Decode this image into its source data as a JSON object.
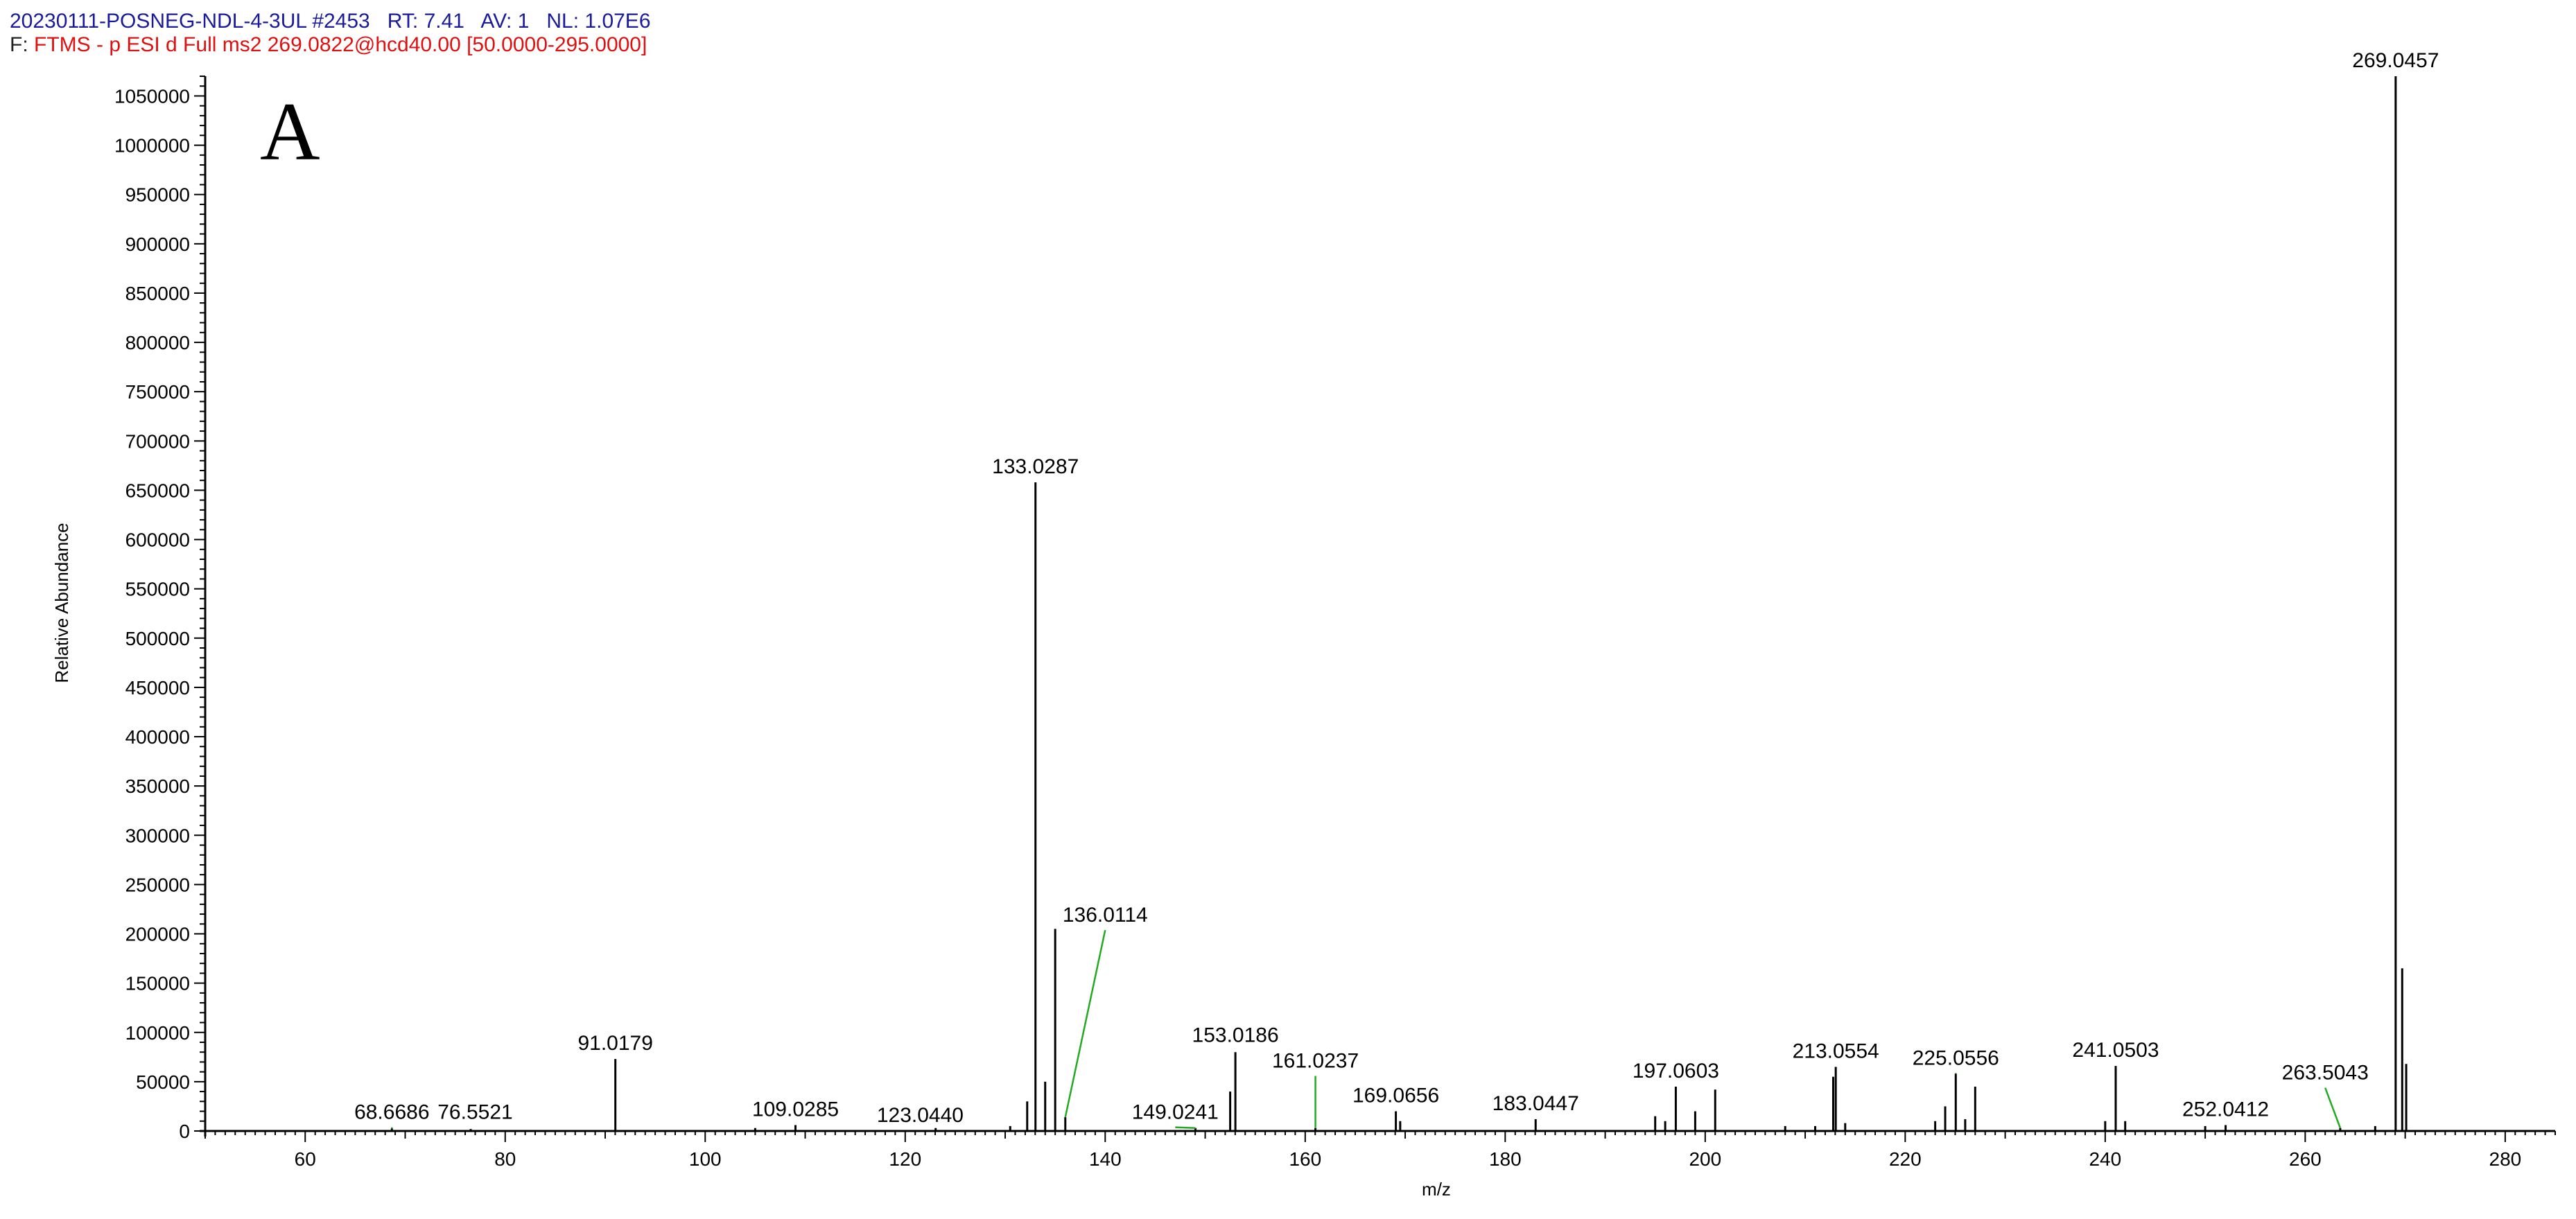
{
  "header": {
    "sample": "20230111-POSNEG-NDL-4-3UL",
    "scan_label": "#2453",
    "rt_label": "RT:",
    "rt_value": "7.41",
    "av_label": "AV:",
    "av_value": "1",
    "nl_label": "NL:",
    "nl_value": "1.07E6",
    "filter_label": "F:",
    "filter_text": "FTMS - p ESI d Full ms2 269.0822@hcd40.00 [50.0000-295.0000]"
  },
  "panel_label": "A",
  "colors": {
    "header_blue": "#1a1a9c",
    "filter_red": "#e01010",
    "peak": "#000000",
    "leader": "#22aa22"
  },
  "chart_data": {
    "type": "bar",
    "xlabel": "m/z",
    "ylabel": "Relative Abundance",
    "xlim": [
      50,
      285
    ],
    "ylim": [
      0,
      1070000
    ],
    "xticks": [
      60,
      80,
      100,
      120,
      140,
      160,
      180,
      200,
      220,
      240,
      260,
      280
    ],
    "xtick_labels": [
      "60",
      "80",
      "100",
      "120",
      "140",
      "160",
      "180",
      "200",
      "220",
      "240",
      "260",
      "280"
    ],
    "yticks": [
      0,
      50000,
      100000,
      150000,
      200000,
      250000,
      300000,
      350000,
      400000,
      450000,
      500000,
      550000,
      600000,
      650000,
      700000,
      750000,
      800000,
      850000,
      900000,
      950000,
      1000000,
      1050000
    ],
    "ytick_labels": [
      "0",
      "50000",
      "100000",
      "150000",
      "200000",
      "250000",
      "300000",
      "350000",
      "400000",
      "450000",
      "500000",
      "550000",
      "600000",
      "650000",
      "700000",
      "750000",
      "800000",
      "850000",
      "900000",
      "950000",
      "1000000",
      "1050000"
    ],
    "peaks": [
      {
        "mz": 68.6686,
        "intensity": 2500
      },
      {
        "mz": 76.5521,
        "intensity": 2000
      },
      {
        "mz": 91.0179,
        "intensity": 73000
      },
      {
        "mz": 105.0,
        "intensity": 3000
      },
      {
        "mz": 109.0285,
        "intensity": 6000
      },
      {
        "mz": 123.044,
        "intensity": 3000
      },
      {
        "mz": 130.5,
        "intensity": 5000
      },
      {
        "mz": 132.2,
        "intensity": 30000
      },
      {
        "mz": 133.0287,
        "intensity": 658000
      },
      {
        "mz": 134.0,
        "intensity": 50000
      },
      {
        "mz": 135.0,
        "intensity": 205000
      },
      {
        "mz": 136.0114,
        "intensity": 14000
      },
      {
        "mz": 149.0241,
        "intensity": 3000
      },
      {
        "mz": 152.5,
        "intensity": 40000
      },
      {
        "mz": 153.0186,
        "intensity": 80000
      },
      {
        "mz": 161.0237,
        "intensity": 3000
      },
      {
        "mz": 169.0656,
        "intensity": 20000
      },
      {
        "mz": 169.5,
        "intensity": 10000
      },
      {
        "mz": 183.0447,
        "intensity": 12000
      },
      {
        "mz": 195.0,
        "intensity": 15000
      },
      {
        "mz": 196.0,
        "intensity": 10000
      },
      {
        "mz": 197.0603,
        "intensity": 45000
      },
      {
        "mz": 199.0,
        "intensity": 20000
      },
      {
        "mz": 201.0,
        "intensity": 42000
      },
      {
        "mz": 208.0,
        "intensity": 5000
      },
      {
        "mz": 211.0,
        "intensity": 5000
      },
      {
        "mz": 212.8,
        "intensity": 55000
      },
      {
        "mz": 213.0554,
        "intensity": 65000
      },
      {
        "mz": 214.0,
        "intensity": 8000
      },
      {
        "mz": 223.0,
        "intensity": 10000
      },
      {
        "mz": 224.0,
        "intensity": 25000
      },
      {
        "mz": 225.0556,
        "intensity": 58000
      },
      {
        "mz": 226.0,
        "intensity": 12000
      },
      {
        "mz": 227.0,
        "intensity": 45000
      },
      {
        "mz": 240.0,
        "intensity": 10000
      },
      {
        "mz": 241.0503,
        "intensity": 66000
      },
      {
        "mz": 242.0,
        "intensity": 10000
      },
      {
        "mz": 250.0,
        "intensity": 5000
      },
      {
        "mz": 252.0412,
        "intensity": 6000
      },
      {
        "mz": 263.5043,
        "intensity": 3000
      },
      {
        "mz": 267.0,
        "intensity": 5000
      },
      {
        "mz": 269.0457,
        "intensity": 1070000
      },
      {
        "mz": 269.7,
        "intensity": 165000
      },
      {
        "mz": 270.1,
        "intensity": 68000
      }
    ],
    "annotations": [
      {
        "text": "68.6686",
        "mz": 68.6686,
        "label_mz": 68.6686,
        "label_y": 8000,
        "leader": true
      },
      {
        "text": "76.5521",
        "mz": 76.5521,
        "label_mz": 77.0,
        "label_y": 8000,
        "leader": false
      },
      {
        "text": "91.0179",
        "mz": 91.0179,
        "label_mz": 91.0179,
        "label_y": 78000,
        "leader": false
      },
      {
        "text": "109.0285",
        "mz": 109.0285,
        "label_mz": 109.0285,
        "label_y": 11000,
        "leader": false
      },
      {
        "text": "123.0440",
        "mz": 123.044,
        "label_mz": 121.5,
        "label_y": 5000,
        "leader": false
      },
      {
        "text": "133.0287",
        "mz": 133.0287,
        "label_mz": 133.0287,
        "label_y": 663000,
        "leader": false
      },
      {
        "text": "136.0114",
        "mz": 136.0114,
        "label_mz": 140.0,
        "label_y": 208000,
        "leader": true
      },
      {
        "text": "149.0241",
        "mz": 149.0241,
        "label_mz": 147.0,
        "label_y": 8000,
        "leader": true
      },
      {
        "text": "153.0186",
        "mz": 153.0186,
        "label_mz": 153.0186,
        "label_y": 86000,
        "leader": false
      },
      {
        "text": "161.0237",
        "mz": 161.0237,
        "label_mz": 161.0237,
        "label_y": 60000,
        "leader": true
      },
      {
        "text": "169.0656",
        "mz": 169.0656,
        "label_mz": 169.0656,
        "label_y": 25000,
        "leader": false
      },
      {
        "text": "183.0447",
        "mz": 183.0447,
        "label_mz": 183.0447,
        "label_y": 17000,
        "leader": false
      },
      {
        "text": "197.0603",
        "mz": 197.0603,
        "label_mz": 197.0603,
        "label_y": 50000,
        "leader": false
      },
      {
        "text": "213.0554",
        "mz": 213.0554,
        "label_mz": 213.0554,
        "label_y": 70000,
        "leader": false
      },
      {
        "text": "225.0556",
        "mz": 225.0556,
        "label_mz": 225.0556,
        "label_y": 63000,
        "leader": true
      },
      {
        "text": "241.0503",
        "mz": 241.0503,
        "label_mz": 241.0503,
        "label_y": 71000,
        "leader": false
      },
      {
        "text": "252.0412",
        "mz": 252.0412,
        "label_mz": 252.0412,
        "label_y": 11000,
        "leader": false
      },
      {
        "text": "263.5043",
        "mz": 263.5043,
        "label_mz": 262.0,
        "label_y": 48000,
        "leader": true
      },
      {
        "text": "269.0457",
        "mz": 269.0457,
        "label_mz": 269.0457,
        "label_y": 1075000,
        "leader": false
      }
    ]
  }
}
